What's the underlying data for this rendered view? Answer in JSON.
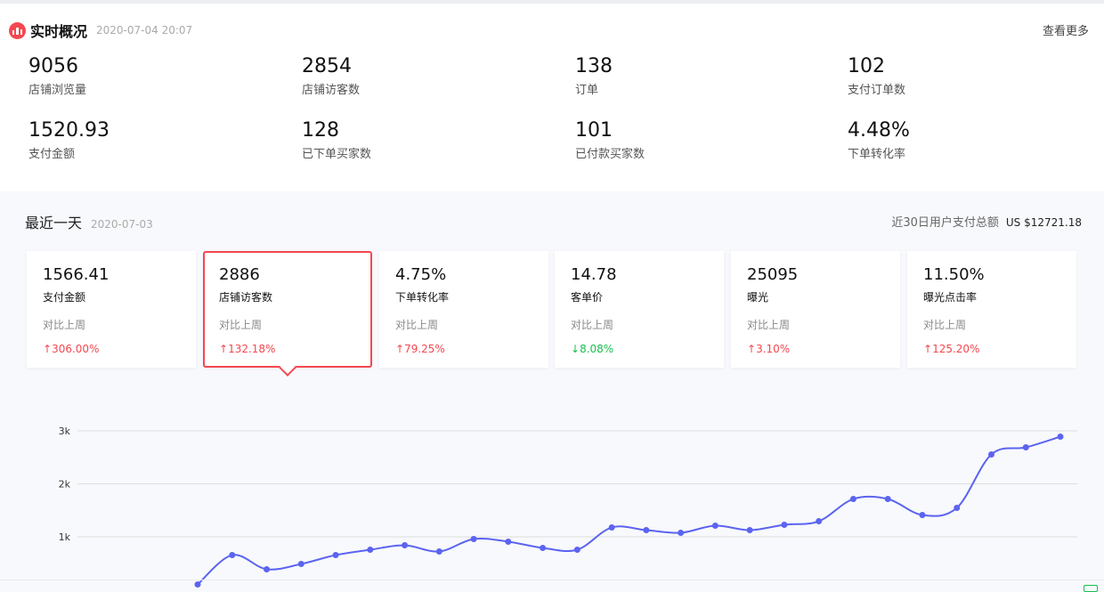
{
  "realtime": {
    "title": "实时概况",
    "time": "2020-07-04 20:07",
    "more": "查看更多",
    "metrics": [
      {
        "value": "9056",
        "label": "店铺浏览量"
      },
      {
        "value": "2854",
        "label": "店铺访客数"
      },
      {
        "value": "138",
        "label": "订单"
      },
      {
        "value": "102",
        "label": "支付订单数"
      },
      {
        "value": "1520.93",
        "label": "支付金额"
      },
      {
        "value": "128",
        "label": "已下单买家数"
      },
      {
        "value": "101",
        "label": "已付款买家数"
      },
      {
        "value": "4.48%",
        "label": "下单转化率"
      }
    ]
  },
  "day": {
    "title": "最近一天",
    "date": "2020-07-03",
    "total_label": "近30日用户支付总额",
    "total_value": "US $12721.18",
    "cards": [
      {
        "value": "1566.41",
        "name": "支付金额",
        "compare": "对比上周",
        "arrow": "↑",
        "change": "306.00%",
        "dir": "up"
      },
      {
        "value": "2886",
        "name": "店铺访客数",
        "compare": "对比上周",
        "arrow": "↑",
        "change": "132.18%",
        "dir": "up"
      },
      {
        "value": "4.75%",
        "name": "下单转化率",
        "compare": "对比上周",
        "arrow": "↑",
        "change": "79.25%",
        "dir": "up"
      },
      {
        "value": "14.78",
        "name": "客单价",
        "compare": "对比上周",
        "arrow": "↓",
        "change": "8.08%",
        "dir": "down"
      },
      {
        "value": "25095",
        "name": "曝光",
        "compare": "对比上周",
        "arrow": "↑",
        "change": "3.10%",
        "dir": "up"
      },
      {
        "value": "11.50%",
        "name": "曝光点击率",
        "compare": "对比上周",
        "arrow": "↑",
        "change": "125.20%",
        "dir": "up"
      }
    ]
  },
  "colors": {
    "accent": "#f5474f",
    "up": "#f5474f",
    "down": "#19be4e",
    "line": "#5b64f0"
  },
  "chart_data": {
    "type": "line",
    "series": [
      {
        "name": "店铺访客数",
        "values": [
          100,
          655,
          387,
          487,
          655,
          756,
          840,
          723,
          958,
          908,
          790,
          756,
          1176,
          1126,
          1076,
          1210,
          1126,
          1227,
          1294,
          1714,
          1714,
          1412,
          1546,
          2555,
          2689,
          2891
        ]
      }
    ],
    "yticks": [
      "1k",
      "2k",
      "3k"
    ],
    "ytick_values": [
      1000,
      2000,
      3000
    ],
    "ylim": [
      0,
      3000
    ],
    "grid": true
  }
}
